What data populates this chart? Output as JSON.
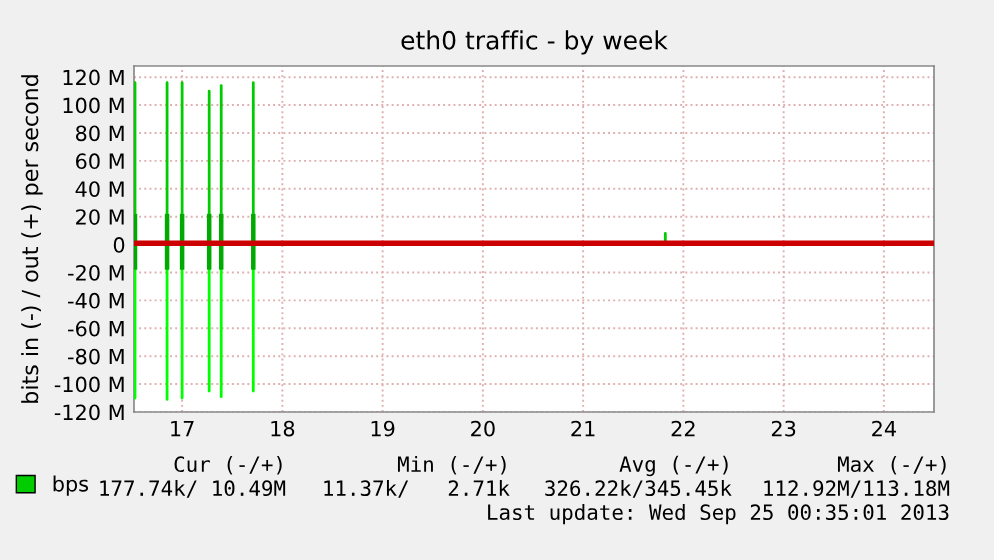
{
  "chart_data": {
    "type": "line",
    "title": "eth0 traffic - by week",
    "ylabel": "bits in (-) / out (+) per second",
    "xlim": [
      16.52,
      24.5
    ],
    "xticks": [
      17,
      18,
      19,
      20,
      21,
      22,
      23,
      24
    ],
    "ylim": [
      -120,
      128
    ],
    "yticks": [
      {
        "value": -120,
        "label": "-120 M"
      },
      {
        "value": -100,
        "label": "-100 M"
      },
      {
        "value": -80,
        "label": "-80 M"
      },
      {
        "value": -60,
        "label": "-60 M"
      },
      {
        "value": -40,
        "label": "-40 M"
      },
      {
        "value": -20,
        "label": "-20 M"
      },
      0,
      {
        "value": 20,
        "label": "20 M"
      },
      {
        "value": 40,
        "label": "40 M"
      },
      {
        "value": 60,
        "label": "60 M"
      },
      {
        "value": 80,
        "label": "80 M"
      },
      {
        "value": 100,
        "label": "100 M"
      },
      {
        "value": 120,
        "label": "120 M"
      }
    ],
    "grid": true,
    "legend": "bottom left",
    "series": [
      {
        "name": "bps",
        "color": "#00cc00",
        "x": [
          16.52,
          16.53,
          16.53,
          16.53,
          16.85,
          16.85,
          16.85,
          17.0,
          17.0,
          17.0,
          17.27,
          17.27,
          17.27,
          17.39,
          17.39,
          17.39,
          17.71,
          17.71,
          17.71,
          21.82,
          21.82,
          21.82
        ],
        "values": [
          1,
          1,
          116,
          1,
          1,
          116,
          1,
          1,
          116,
          1,
          1,
          110,
          1,
          1,
          114,
          1,
          1,
          116,
          1,
          1,
          8,
          1
        ]
      },
      {
        "color": "#00ff00",
        "x": [
          16.52,
          16.53,
          16.53,
          16.53,
          16.85,
          16.85,
          16.85,
          17.0,
          17.0,
          17.0,
          17.27,
          17.27,
          17.27,
          17.39,
          17.39,
          17.39,
          17.71,
          17.71,
          17.71,
          24.5
        ],
        "values": [
          0,
          0,
          -110,
          0,
          0,
          -111,
          0,
          0,
          -110,
          0,
          0,
          -105,
          0,
          0,
          -109,
          0,
          0,
          -105,
          0,
          0
        ]
      },
      {
        "type": "bar",
        "color": "#00aa00",
        "x": [
          16.53,
          16.85,
          17.0,
          17.27,
          17.39,
          17.71
        ],
        "base": [
          -18,
          -18,
          -18,
          -18,
          -18,
          -18
        ],
        "values": [
          40,
          40,
          40,
          40,
          40,
          40
        ]
      }
    ],
    "ref_lines": [
      {
        "axis": "y",
        "value": 1,
        "color": "#cc0000"
      }
    ],
    "annotations": [
      "Cur (-/+)",
      "Min (-/+)",
      "Avg (-/+)",
      "Max (-/+)",
      "177.74k/ 10.49M",
      "11.37k/   2.71k",
      "326.22k/345.45k",
      "112.92M/113.18M",
      "Last update: Wed Sep 25 00:35:01 2013"
    ]
  }
}
